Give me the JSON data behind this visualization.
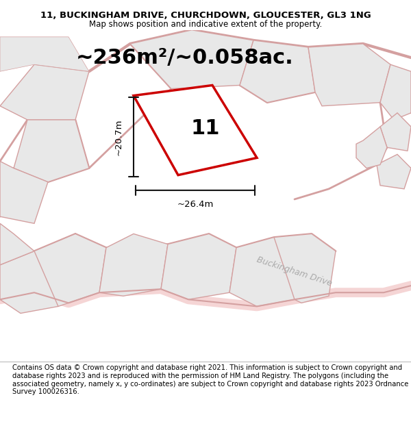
{
  "title_line1": "11, BUCKINGHAM DRIVE, CHURCHDOWN, GLOUCESTER, GL3 1NG",
  "title_line2": "Map shows position and indicative extent of the property.",
  "area_text": "~236m²/~0.058ac.",
  "property_number": "11",
  "dim_width": "~26.4m",
  "dim_height": "~20.7m",
  "street_label": "Buckingham Drive",
  "footer_text": "Contains OS data © Crown copyright and database right 2021. This information is subject to Crown copyright and database rights 2023 and is reproduced with the permission of HM Land Registry. The polygons (including the associated geometry, namely x, y co-ordinates) are subject to Crown copyright and database rights 2023 Ordnance Survey 100026316.",
  "map_bg_color": "#ffffff",
  "parcel_fill": "#e8e8e8",
  "parcel_edge": "#d4a0a0",
  "road_fill": "#f5d5d5",
  "plot_edge_color": "#cc0000",
  "plot_fill_color": "#ffffff",
  "dim_line_color": "#111111",
  "title_fontsize": 9.5,
  "subtitle_fontsize": 8.5,
  "area_fontsize": 22,
  "number_fontsize": 22,
  "dim_fontsize": 9.5,
  "street_fontsize": 9,
  "footer_fontsize": 7.2
}
